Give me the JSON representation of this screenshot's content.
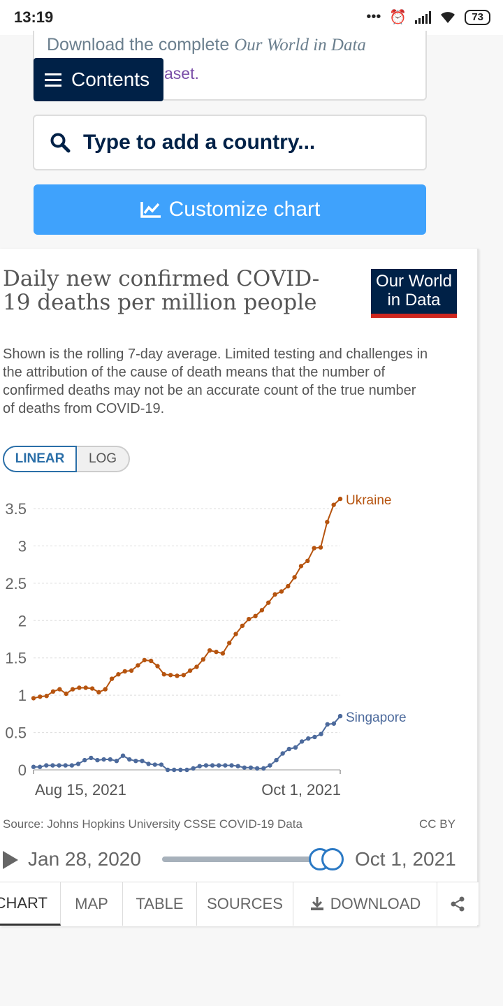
{
  "status_bar": {
    "time": "13:19",
    "dots": "•••",
    "battery": "73"
  },
  "top_card": {
    "download_prefix": "Download the complete ",
    "download_italic": "Our World in Data",
    "dataset_suffix": "aset."
  },
  "contents_button": {
    "label": "Contents"
  },
  "search": {
    "placeholder": "Type to add a country..."
  },
  "customize": {
    "label": "Customize chart"
  },
  "chart": {
    "title": "Daily new confirmed COVID-19 deaths per million people",
    "logo_line1": "Our World",
    "logo_line2": "in Data",
    "subtitle": "Shown is the rolling 7-day average. Limited testing and challenges in the attribution of the cause of death means that the number of confirmed deaths may not be an accurate count of the true number of deaths from COVID-19.",
    "scale_toggle": {
      "linear": "LINEAR",
      "log": "LOG",
      "selected": "LINEAR"
    },
    "source": "Source: Johns Hopkins University CSSE COVID-19 Data",
    "license": "CC BY",
    "timeline": {
      "start": "Jan 28, 2020",
      "end": "Oct 1, 2021"
    }
  },
  "chart_data": {
    "type": "line",
    "ylim": [
      0,
      3.5
    ],
    "yticks": [
      "0",
      "0.5",
      "1",
      "1.5",
      "2",
      "2.5",
      "3",
      "3.5"
    ],
    "xtick_labels": [
      "Aug 15, 2021",
      "Oct 1, 2021"
    ],
    "grid": true,
    "series": [
      {
        "name": "Ukraine",
        "color": "#b6540f",
        "values": [
          0.96,
          0.98,
          0.99,
          1.05,
          1.08,
          1.02,
          1.08,
          1.1,
          1.1,
          1.09,
          1.04,
          1.08,
          1.22,
          1.28,
          1.32,
          1.33,
          1.4,
          1.47,
          1.46,
          1.39,
          1.28,
          1.27,
          1.26,
          1.27,
          1.33,
          1.38,
          1.48,
          1.6,
          1.58,
          1.56,
          1.7,
          1.82,
          1.93,
          2.02,
          2.06,
          2.14,
          2.24,
          2.35,
          2.39,
          2.46,
          2.58,
          2.73,
          2.8,
          2.97,
          2.98,
          3.32,
          3.55,
          3.63
        ]
      },
      {
        "name": "Singapore",
        "color": "#4c6a9c",
        "values": [
          0.04,
          0.04,
          0.06,
          0.06,
          0.06,
          0.06,
          0.06,
          0.08,
          0.13,
          0.16,
          0.13,
          0.14,
          0.14,
          0.12,
          0.19,
          0.14,
          0.12,
          0.12,
          0.08,
          0.07,
          0.07,
          0.0,
          0.0,
          0.0,
          0.0,
          0.02,
          0.05,
          0.06,
          0.06,
          0.06,
          0.06,
          0.06,
          0.05,
          0.03,
          0.03,
          0.02,
          0.02,
          0.06,
          0.13,
          0.22,
          0.28,
          0.3,
          0.38,
          0.42,
          0.44,
          0.48,
          0.61,
          0.62,
          0.72
        ]
      }
    ]
  },
  "tabs": [
    {
      "label": "CHART",
      "active": true
    },
    {
      "label": "MAP"
    },
    {
      "label": "TABLE"
    },
    {
      "label": "SOURCES"
    },
    {
      "label": "DOWNLOAD"
    }
  ]
}
